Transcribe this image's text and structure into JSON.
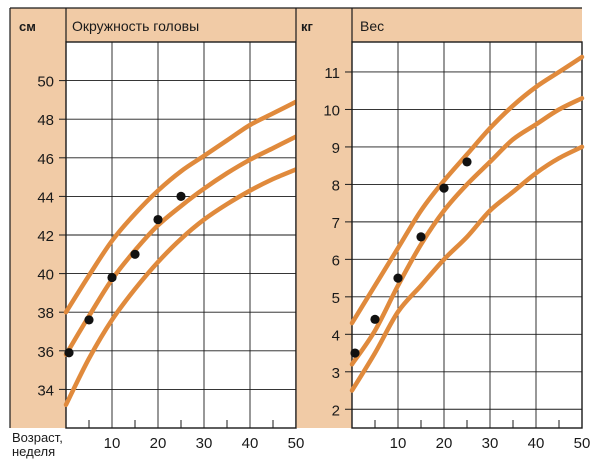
{
  "colors": {
    "axis_band": "#f1cba6",
    "background": "#ffffff",
    "grid": "#1a1a1a",
    "curve": "#e08a3c",
    "point": "#111111"
  },
  "footer": {
    "x_caption_line1": "Возраст,",
    "x_caption_line2": "неделя"
  },
  "chart_data": [
    {
      "type": "line",
      "title": "Окружность головы",
      "ylabel": "см",
      "xlim": [
        0,
        50
      ],
      "ylim": [
        32,
        52
      ],
      "xticks": [
        10,
        20,
        30,
        40,
        50
      ],
      "yticks": [
        34,
        36,
        38,
        40,
        42,
        44,
        46,
        48,
        50
      ],
      "grid": true,
      "series": [
        {
          "role": "upper",
          "x": [
            0,
            5,
            10,
            15,
            20,
            25,
            30,
            35,
            40,
            45,
            50
          ],
          "values": [
            38.0,
            39.9,
            41.7,
            43.1,
            44.3,
            45.3,
            46.1,
            46.9,
            47.7,
            48.3,
            48.9
          ]
        },
        {
          "role": "middle",
          "x": [
            0,
            5,
            10,
            15,
            20,
            25,
            30,
            35,
            40,
            45,
            50
          ],
          "values": [
            35.8,
            37.8,
            39.7,
            41.2,
            42.5,
            43.5,
            44.4,
            45.2,
            45.9,
            46.5,
            47.1
          ]
        },
        {
          "role": "lower",
          "x": [
            0,
            5,
            10,
            15,
            20,
            25,
            30,
            35,
            40,
            45,
            50
          ],
          "values": [
            33.2,
            35.6,
            37.6,
            39.2,
            40.6,
            41.8,
            42.8,
            43.6,
            44.3,
            44.9,
            45.4
          ]
        }
      ],
      "points": {
        "x": [
          0,
          5,
          10,
          15,
          20,
          25
        ],
        "values": [
          35.9,
          37.6,
          39.8,
          41.0,
          42.8,
          44.0
        ]
      }
    },
    {
      "type": "line",
      "title": "Вес",
      "ylabel": "кг",
      "xlim": [
        0,
        50
      ],
      "ylim": [
        1.5,
        11.8
      ],
      "xticks": [
        10,
        20,
        30,
        40,
        50
      ],
      "yticks": [
        2,
        3,
        4,
        5,
        6,
        7,
        8,
        9,
        10,
        11
      ],
      "grid": true,
      "series": [
        {
          "role": "upper",
          "x": [
            0,
            5,
            10,
            15,
            20,
            25,
            30,
            35,
            40,
            45,
            50
          ],
          "values": [
            4.3,
            5.3,
            6.3,
            7.3,
            8.1,
            8.8,
            9.5,
            10.1,
            10.6,
            11.0,
            11.4
          ]
        },
        {
          "role": "middle",
          "x": [
            0,
            5,
            10,
            15,
            20,
            25,
            30,
            35,
            40,
            45,
            50
          ],
          "values": [
            3.2,
            4.1,
            5.3,
            6.4,
            7.3,
            8.0,
            8.6,
            9.2,
            9.6,
            10.0,
            10.3
          ]
        },
        {
          "role": "lower",
          "x": [
            0,
            5,
            10,
            15,
            20,
            25,
            30,
            35,
            40,
            45,
            50
          ],
          "values": [
            2.5,
            3.5,
            4.6,
            5.3,
            6.0,
            6.6,
            7.3,
            7.8,
            8.3,
            8.7,
            9.0
          ]
        }
      ],
      "points": {
        "x": [
          0,
          5,
          10,
          15,
          20,
          25
        ],
        "values": [
          3.5,
          4.4,
          5.5,
          6.6,
          7.9,
          8.6
        ]
      }
    }
  ]
}
